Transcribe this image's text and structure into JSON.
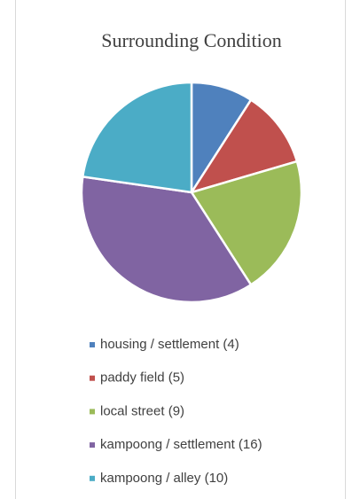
{
  "chart_data": {
    "type": "pie",
    "title": "Surrounding Condition",
    "categories": [
      "housing / settlement (4)",
      "paddy field (5)",
      "local street (9)",
      "kampoong / settlement (16)",
      "kampoong / alley (10)"
    ],
    "values": [
      4,
      5,
      9,
      16,
      10
    ],
    "colors": [
      "#4f81bd",
      "#c0504d",
      "#9bbb59",
      "#8064a2",
      "#4bacc6"
    ],
    "legend": "bottom"
  }
}
